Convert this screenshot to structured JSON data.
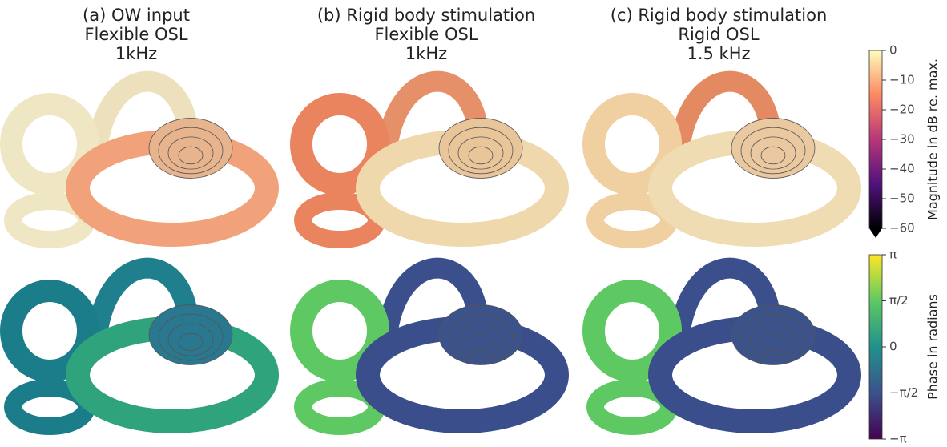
{
  "panels": [
    {
      "title": [
        "(a) OW input",
        "Flexible OSL",
        "1kHz"
      ]
    },
    {
      "title": [
        "(b) Rigid body stimulation",
        "Flexible OSL",
        "1kHz"
      ]
    },
    {
      "title": [
        "(c) Rigid body stimulation",
        "Rigid OSL",
        "1.5 kHz"
      ]
    }
  ],
  "colorbars": [
    {
      "label": "Magnitude in dB re. max.",
      "lim": [
        -60,
        0
      ],
      "ticks": [
        0,
        {
          "value": -10,
          "label": "−10"
        },
        {
          "value": -20,
          "label": "−20"
        },
        {
          "value": -30,
          "label": "−30"
        },
        {
          "value": -40,
          "label": "−40"
        },
        {
          "value": -50,
          "label": "−50"
        },
        {
          "value": -60,
          "label": "−60"
        }
      ]
    },
    {
      "label": "Phase in radians",
      "lim": [
        -3.14159,
        3.14159
      ],
      "ticks": [
        {
          "value": 3.14159,
          "label": "π"
        },
        {
          "value": 1.5708,
          "label": "π/2"
        },
        0,
        {
          "value": -1.5708,
          "label": "−π/2"
        },
        {
          "value": -3.14159,
          "label": "−π"
        }
      ]
    }
  ]
}
